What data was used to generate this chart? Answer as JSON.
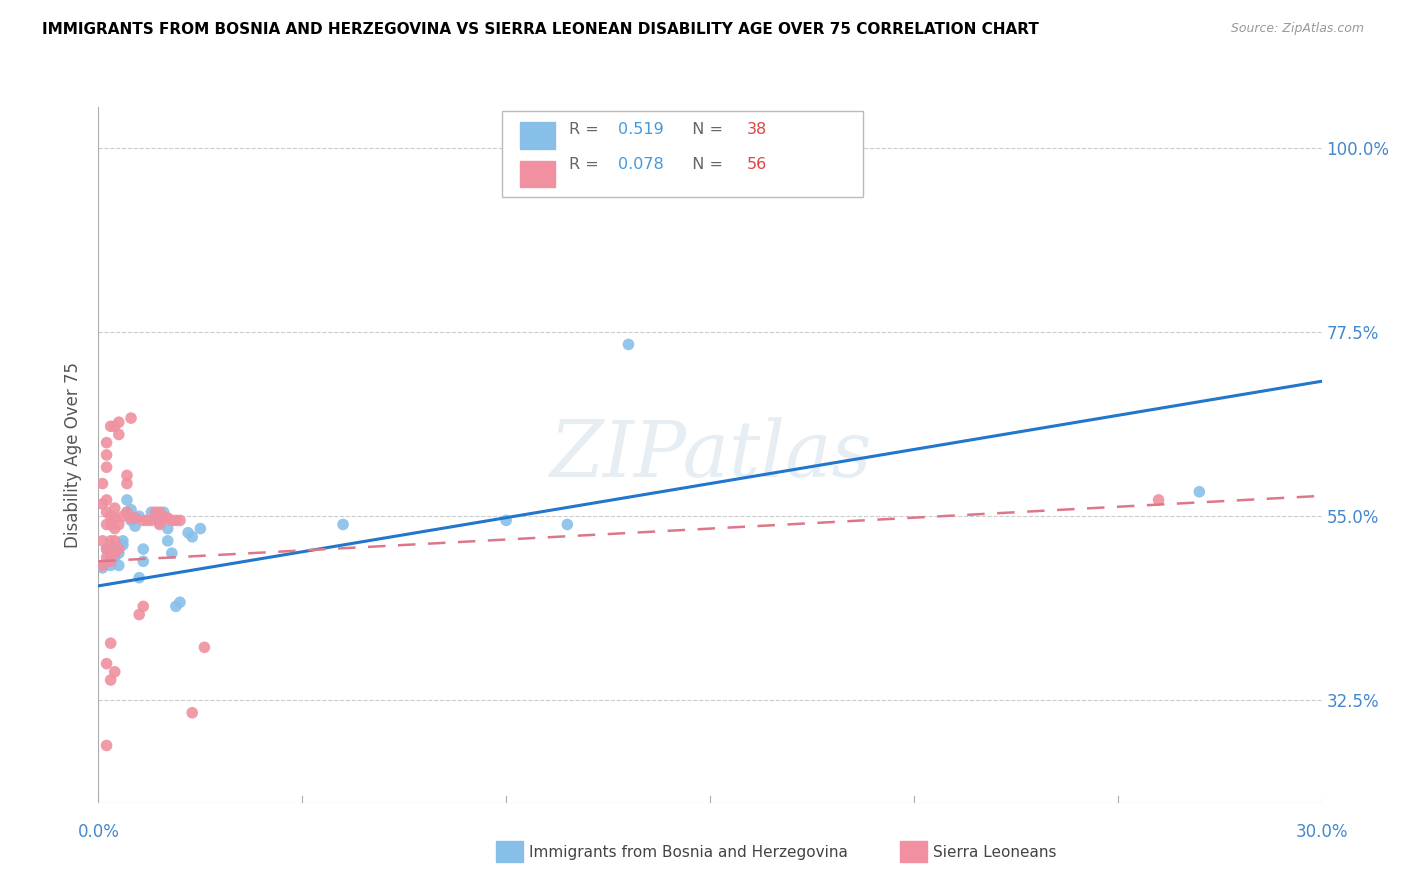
{
  "title": "IMMIGRANTS FROM BOSNIA AND HERZEGOVINA VS SIERRA LEONEAN DISABILITY AGE OVER 75 CORRELATION CHART",
  "source": "Source: ZipAtlas.com",
  "ylabel": "Disability Age Over 75",
  "xlim": [
    0.0,
    0.3
  ],
  "ylim": [
    0.2,
    1.05
  ],
  "yticks": [
    0.325,
    0.55,
    0.775,
    1.0
  ],
  "ytick_labels": [
    "32.5%",
    "55.0%",
    "77.5%",
    "100.0%"
  ],
  "xticks": [
    0.0,
    0.05,
    0.1,
    0.15,
    0.2,
    0.25,
    0.3
  ],
  "watermark": "ZIPatlas",
  "bosnia_color": "#88bfe8",
  "sierra_color": "#f090a0",
  "bosnia_line_color": "#2277cc",
  "sierra_line_color": "#dd7788",
  "bosnia_line": [
    0.0,
    0.465,
    0.3,
    0.715
  ],
  "sierra_line": [
    0.0,
    0.495,
    0.3,
    0.575
  ],
  "bosnia_points": [
    [
      0.001,
      0.487
    ],
    [
      0.002,
      0.51
    ],
    [
      0.003,
      0.49
    ],
    [
      0.003,
      0.5
    ],
    [
      0.004,
      0.51
    ],
    [
      0.004,
      0.5
    ],
    [
      0.005,
      0.505
    ],
    [
      0.005,
      0.49
    ],
    [
      0.006,
      0.52
    ],
    [
      0.006,
      0.515
    ],
    [
      0.007,
      0.57
    ],
    [
      0.007,
      0.555
    ],
    [
      0.008,
      0.558
    ],
    [
      0.008,
      0.545
    ],
    [
      0.009,
      0.548
    ],
    [
      0.009,
      0.538
    ],
    [
      0.01,
      0.55
    ],
    [
      0.01,
      0.475
    ],
    [
      0.011,
      0.51
    ],
    [
      0.011,
      0.495
    ],
    [
      0.013,
      0.555
    ],
    [
      0.014,
      0.548
    ],
    [
      0.015,
      0.548
    ],
    [
      0.015,
      0.542
    ],
    [
      0.016,
      0.555
    ],
    [
      0.017,
      0.535
    ],
    [
      0.017,
      0.52
    ],
    [
      0.018,
      0.505
    ],
    [
      0.019,
      0.44
    ],
    [
      0.02,
      0.445
    ],
    [
      0.022,
      0.53
    ],
    [
      0.023,
      0.525
    ],
    [
      0.025,
      0.535
    ],
    [
      0.06,
      0.54
    ],
    [
      0.1,
      0.545
    ],
    [
      0.115,
      0.54
    ],
    [
      0.27,
      0.58
    ],
    [
      0.13,
      0.76
    ]
  ],
  "sierra_points": [
    [
      0.001,
      0.49
    ],
    [
      0.001,
      0.52
    ],
    [
      0.001,
      0.565
    ],
    [
      0.001,
      0.59
    ],
    [
      0.002,
      0.5
    ],
    [
      0.002,
      0.51
    ],
    [
      0.002,
      0.54
    ],
    [
      0.002,
      0.555
    ],
    [
      0.002,
      0.57
    ],
    [
      0.002,
      0.61
    ],
    [
      0.002,
      0.625
    ],
    [
      0.002,
      0.64
    ],
    [
      0.003,
      0.495
    ],
    [
      0.003,
      0.505
    ],
    [
      0.003,
      0.52
    ],
    [
      0.003,
      0.54
    ],
    [
      0.003,
      0.55
    ],
    [
      0.003,
      0.66
    ],
    [
      0.004,
      0.505
    ],
    [
      0.004,
      0.52
    ],
    [
      0.004,
      0.535
    ],
    [
      0.004,
      0.548
    ],
    [
      0.004,
      0.56
    ],
    [
      0.004,
      0.66
    ],
    [
      0.005,
      0.51
    ],
    [
      0.005,
      0.54
    ],
    [
      0.005,
      0.65
    ],
    [
      0.005,
      0.665
    ],
    [
      0.006,
      0.55
    ],
    [
      0.007,
      0.555
    ],
    [
      0.007,
      0.6
    ],
    [
      0.007,
      0.59
    ],
    [
      0.008,
      0.548
    ],
    [
      0.008,
      0.67
    ],
    [
      0.009,
      0.548
    ],
    [
      0.01,
      0.43
    ],
    [
      0.011,
      0.44
    ],
    [
      0.011,
      0.545
    ],
    [
      0.012,
      0.545
    ],
    [
      0.013,
      0.545
    ],
    [
      0.014,
      0.555
    ],
    [
      0.015,
      0.555
    ],
    [
      0.015,
      0.54
    ],
    [
      0.016,
      0.548
    ],
    [
      0.017,
      0.548
    ],
    [
      0.018,
      0.545
    ],
    [
      0.019,
      0.545
    ],
    [
      0.02,
      0.545
    ],
    [
      0.002,
      0.37
    ],
    [
      0.003,
      0.35
    ],
    [
      0.004,
      0.36
    ],
    [
      0.026,
      0.39
    ],
    [
      0.002,
      0.27
    ],
    [
      0.023,
      0.31
    ],
    [
      0.26,
      0.57
    ],
    [
      0.003,
      0.395
    ]
  ]
}
